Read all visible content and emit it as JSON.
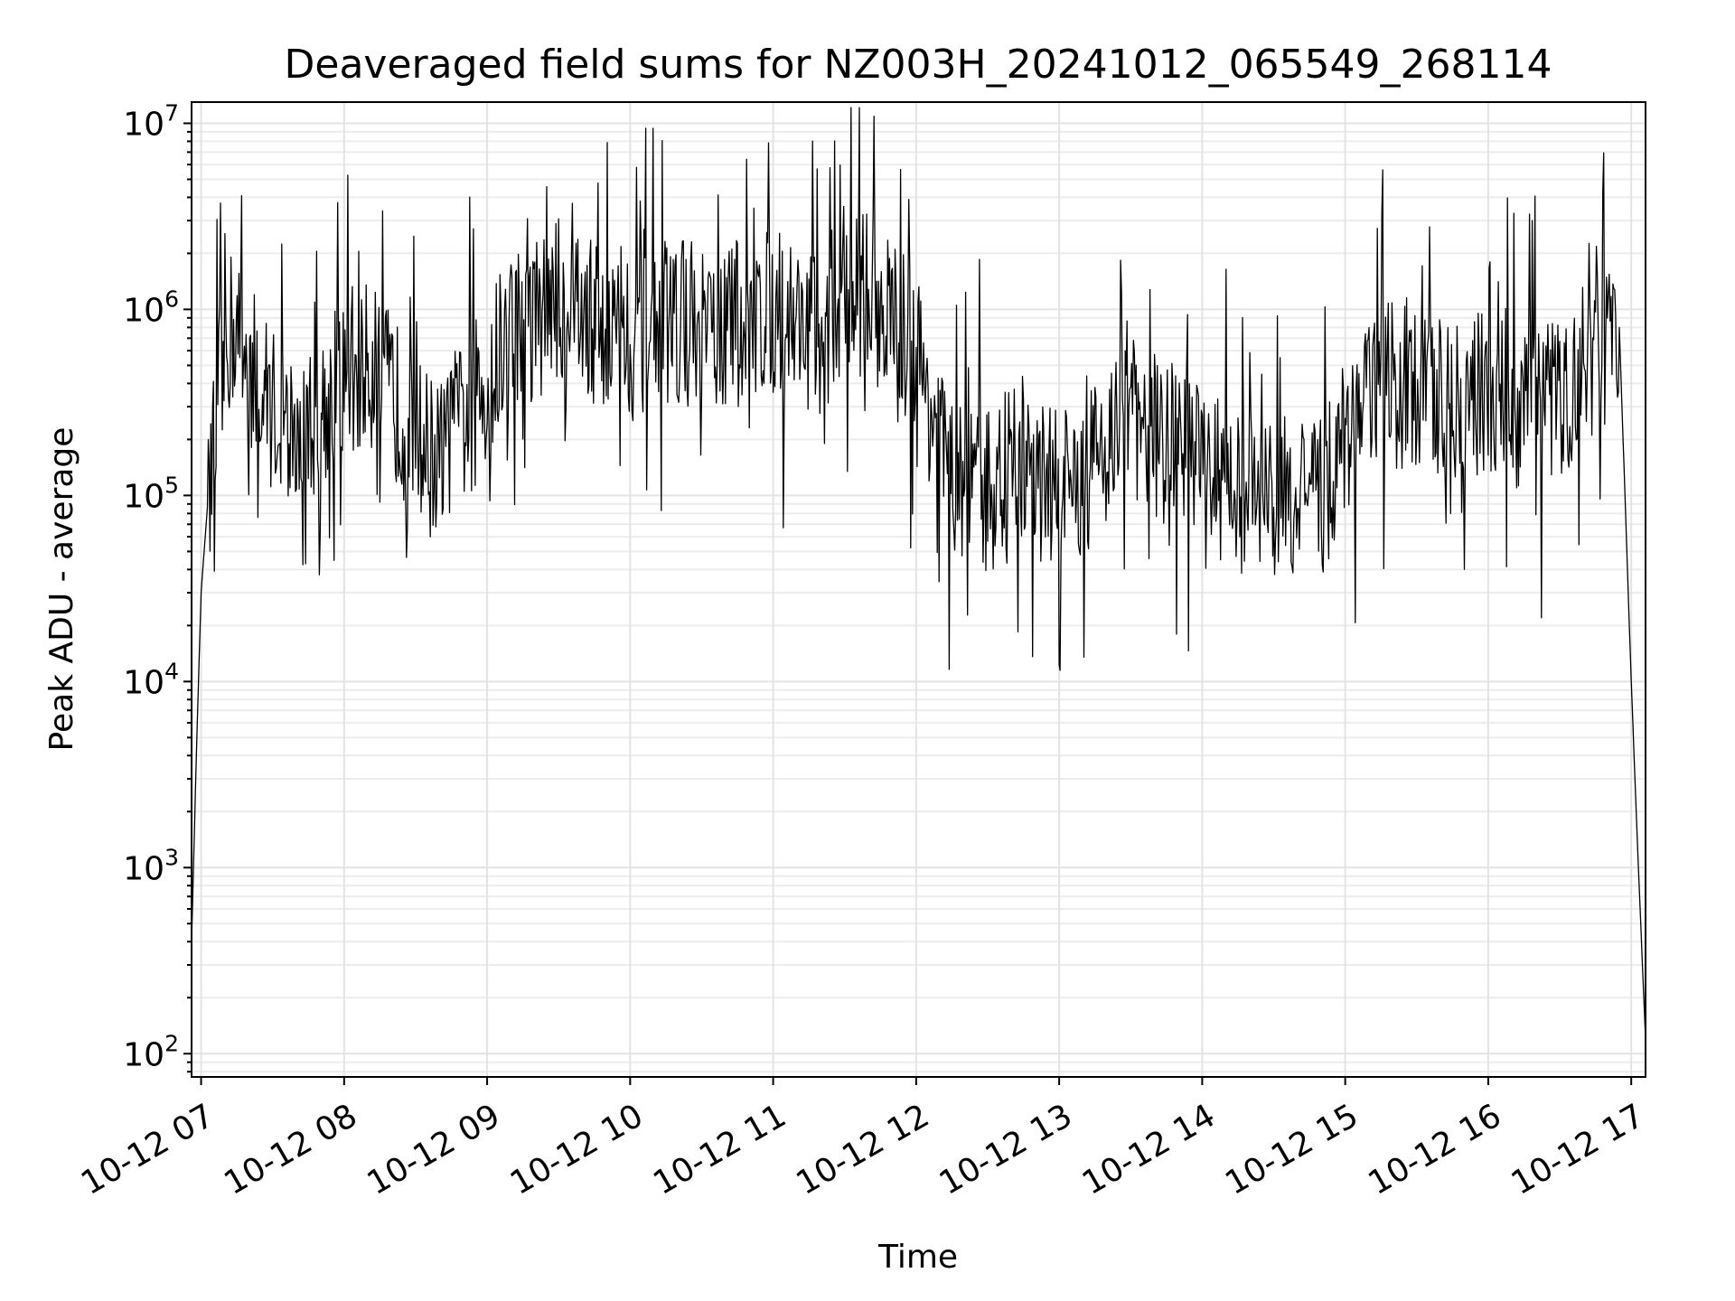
{
  "chart_data": {
    "type": "line",
    "title": "Deaveraged field sums for NZ003H_20241012_065549_268114",
    "xlabel": "Time",
    "ylabel": "Peak ADU - average",
    "y_scale": "log",
    "grid": true,
    "x_range": [
      "2024-10-12 06:56",
      "2024-10-12 17:06"
    ],
    "ylim": [
      75,
      13000000
    ],
    "x_ticks": [
      {
        "value": "2024-10-12 07:00",
        "label": "10-12 07"
      },
      {
        "value": "2024-10-12 08:00",
        "label": "10-12 08"
      },
      {
        "value": "2024-10-12 09:00",
        "label": "10-12 09"
      },
      {
        "value": "2024-10-12 10:00",
        "label": "10-12 10"
      },
      {
        "value": "2024-10-12 11:00",
        "label": "10-12 11"
      },
      {
        "value": "2024-10-12 12:00",
        "label": "10-12 12"
      },
      {
        "value": "2024-10-12 13:00",
        "label": "10-12 13"
      },
      {
        "value": "2024-10-12 14:00",
        "label": "10-12 14"
      },
      {
        "value": "2024-10-12 15:00",
        "label": "10-12 15"
      },
      {
        "value": "2024-10-12 16:00",
        "label": "10-12 16"
      },
      {
        "value": "2024-10-12 17:00",
        "label": "10-12 17"
      }
    ],
    "y_ticks": [
      {
        "value": 100,
        "base": "10",
        "exp": "2"
      },
      {
        "value": 1000,
        "base": "10",
        "exp": "3"
      },
      {
        "value": 10000,
        "base": "10",
        "exp": "4"
      },
      {
        "value": 100000,
        "base": "10",
        "exp": "5"
      },
      {
        "value": 1000000,
        "base": "10",
        "exp": "6"
      },
      {
        "value": 10000000,
        "base": "10",
        "exp": "7"
      }
    ],
    "series": [
      {
        "color": "#000000",
        "x": [
          "2024-10-12 06:56",
          "2024-10-12 06:58",
          "2024-10-12 07:00",
          "2024-10-12 07:03",
          "2024-10-12 07:07",
          "2024-10-12 07:10",
          "2024-10-12 07:14",
          "2024-10-12 07:20",
          "2024-10-12 07:30",
          "2024-10-12 07:40",
          "2024-10-12 07:50",
          "2024-10-12 08:00",
          "2024-10-12 08:10",
          "2024-10-12 08:20",
          "2024-10-12 08:30",
          "2024-10-12 08:40",
          "2024-10-12 08:50",
          "2024-10-12 09:00",
          "2024-10-12 09:10",
          "2024-10-12 09:20",
          "2024-10-12 09:30",
          "2024-10-12 09:40",
          "2024-10-12 09:50",
          "2024-10-12 10:00",
          "2024-10-12 10:10",
          "2024-10-12 10:20",
          "2024-10-12 10:30",
          "2024-10-12 10:40",
          "2024-10-12 10:50",
          "2024-10-12 11:00",
          "2024-10-12 11:10",
          "2024-10-12 11:20",
          "2024-10-12 11:30",
          "2024-10-12 11:40",
          "2024-10-12 11:50",
          "2024-10-12 12:00",
          "2024-10-12 12:10",
          "2024-10-12 12:20",
          "2024-10-12 12:30",
          "2024-10-12 12:40",
          "2024-10-12 12:50",
          "2024-10-12 13:00",
          "2024-10-12 13:10",
          "2024-10-12 13:20",
          "2024-10-12 13:30",
          "2024-10-12 13:40",
          "2024-10-12 13:50",
          "2024-10-12 14:00",
          "2024-10-12 14:10",
          "2024-10-12 14:20",
          "2024-10-12 14:30",
          "2024-10-12 14:40",
          "2024-10-12 14:50",
          "2024-10-12 15:00",
          "2024-10-12 15:10",
          "2024-10-12 15:20",
          "2024-10-12 15:30",
          "2024-10-12 15:40",
          "2024-10-12 15:50",
          "2024-10-12 16:00",
          "2024-10-12 16:10",
          "2024-10-12 16:20",
          "2024-10-12 16:30",
          "2024-10-12 16:40",
          "2024-10-12 16:50",
          "2024-10-12 16:55",
          "2024-10-12 17:00",
          "2024-10-12 17:03",
          "2024-10-12 17:06"
        ],
        "y": [
          400,
          4000,
          30000,
          100000,
          300000,
          700000,
          800000,
          500000,
          300000,
          200000,
          300000,
          400000,
          500000,
          350000,
          200000,
          150000,
          250000,
          400000,
          800000,
          900000,
          1100000,
          900000,
          800000,
          700000,
          800000,
          900000,
          700000,
          800000,
          900000,
          1000000,
          900000,
          700000,
          1300000,
          1200000,
          900000,
          600000,
          200000,
          100000,
          100000,
          150000,
          120000,
          100000,
          120000,
          200000,
          250000,
          200000,
          180000,
          150000,
          120000,
          100000,
          100000,
          100000,
          90000,
          200000,
          350000,
          400000,
          350000,
          350000,
          300000,
          350000,
          300000,
          300000,
          320000,
          500000,
          700000,
          800000,
          10000,
          1000,
          120
        ]
      }
    ]
  }
}
